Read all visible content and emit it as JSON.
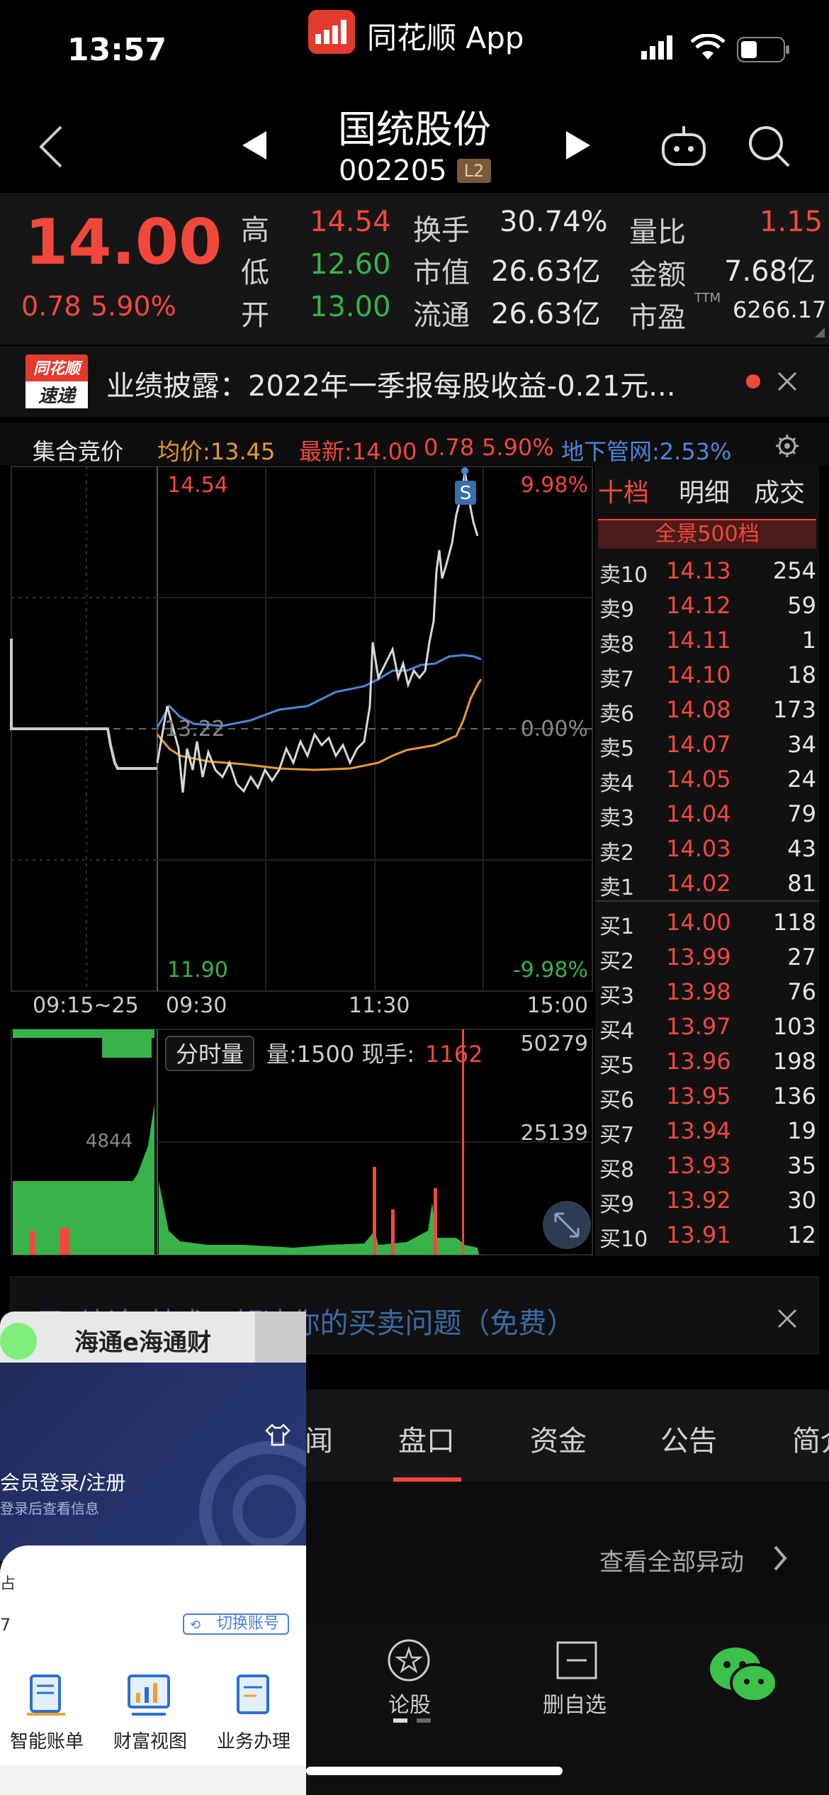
{
  "status_bar": {
    "time": "13:57",
    "app_name": "同花顺 App"
  },
  "header": {
    "stock_name": "国统股份",
    "stock_code": "002205",
    "level_badge": "L2"
  },
  "quote": {
    "price": "14.00",
    "change": "0.78",
    "change_pct": "5.90%",
    "high_label": "高",
    "high": "14.54",
    "low_label": "低",
    "low": "12.60",
    "open_label": "开",
    "open": "13.00",
    "turnover_label": "换手",
    "turnover": "30.74%",
    "mktcap_label": "市值",
    "mktcap": "26.63亿",
    "float_label": "流通",
    "float_cap": "26.63亿",
    "vol_ratio_label": "量比",
    "vol_ratio": "1.15",
    "amount_label": "金额",
    "amount": "7.68亿",
    "pe_label": "市盈",
    "pe_sup": "TTM",
    "pe": "6266.17"
  },
  "notice": {
    "logo_top": "同花顺",
    "logo_bottom": "速递",
    "text": "业绩披露：2022年一季报每股收益-0.21元..."
  },
  "chart_bar": {
    "mode": "集合竞价",
    "avg": "均价:13.45",
    "latest": "最新:14.00",
    "chg": "0.78",
    "pct": "5.90%",
    "pipe": "地下管网:2.53%"
  },
  "chart": {
    "top_price": "14.54",
    "bottom_price": "11.90",
    "top_pct": "9.98%",
    "bottom_pct": "-9.98%",
    "zero_pct": "0.00%",
    "preclose": "13.22",
    "t1": "09:15~25",
    "t2": "09:30",
    "t3": "11:30",
    "t4": "15:00",
    "s_mark": "S",
    "vol_tag": "分时量",
    "vol_info": "量:1500 现手:",
    "vol_now": "1162",
    "vol_max": "50279",
    "vol_mid": "25139",
    "auction_vol": "4844"
  },
  "book": {
    "tabs": [
      "十档",
      "明细",
      "成交"
    ],
    "full_depth": "全景500档",
    "sells": [
      {
        "label": "卖10",
        "price": "14.13",
        "vol": "254"
      },
      {
        "label": "卖9",
        "price": "14.12",
        "vol": "59"
      },
      {
        "label": "卖8",
        "price": "14.11",
        "vol": "1"
      },
      {
        "label": "卖7",
        "price": "14.10",
        "vol": "18"
      },
      {
        "label": "卖6",
        "price": "14.08",
        "vol": "173"
      },
      {
        "label": "卖5",
        "price": "14.07",
        "vol": "34"
      },
      {
        "label": "卖4",
        "price": "14.05",
        "vol": "24"
      },
      {
        "label": "卖3",
        "price": "14.04",
        "vol": "79"
      },
      {
        "label": "卖2",
        "price": "14.03",
        "vol": "43"
      },
      {
        "label": "卖1",
        "price": "14.02",
        "vol": "81"
      }
    ],
    "buys": [
      {
        "label": "买1",
        "price": "14.00",
        "vol": "118"
      },
      {
        "label": "买2",
        "price": "13.99",
        "vol": "27"
      },
      {
        "label": "买3",
        "price": "13.98",
        "vol": "76"
      },
      {
        "label": "买4",
        "price": "13.97",
        "vol": "103"
      },
      {
        "label": "买5",
        "price": "13.96",
        "vol": "198"
      },
      {
        "label": "买6",
        "price": "13.95",
        "vol": "136"
      },
      {
        "label": "买7",
        "price": "13.94",
        "vol": "19"
      },
      {
        "label": "买8",
        "price": "13.93",
        "vol": "35"
      },
      {
        "label": "买9",
        "price": "13.92",
        "vol": "30"
      },
      {
        "label": "买10",
        "price": "13.91",
        "vol": "12"
      }
    ]
  },
  "promo": {
    "text": "用“综论”技术，解决你的买卖问题（免费）"
  },
  "tabs": [
    "闻",
    "盘口",
    "资金",
    "公告",
    "简介"
  ],
  "sub_panel": {
    "link": "查看全部异动"
  },
  "bottom_nav": {
    "forum": "论股",
    "delete_watch": "删自选"
  },
  "overlay": {
    "title": "海通e海通财",
    "login": "会员登录/注册",
    "login_hint": "登录后查看信息",
    "switch_account": "切换账号",
    "frag_1": "占",
    "frag_2": "7",
    "items": [
      "智能账单",
      "财富视图",
      "业务办理"
    ]
  }
}
